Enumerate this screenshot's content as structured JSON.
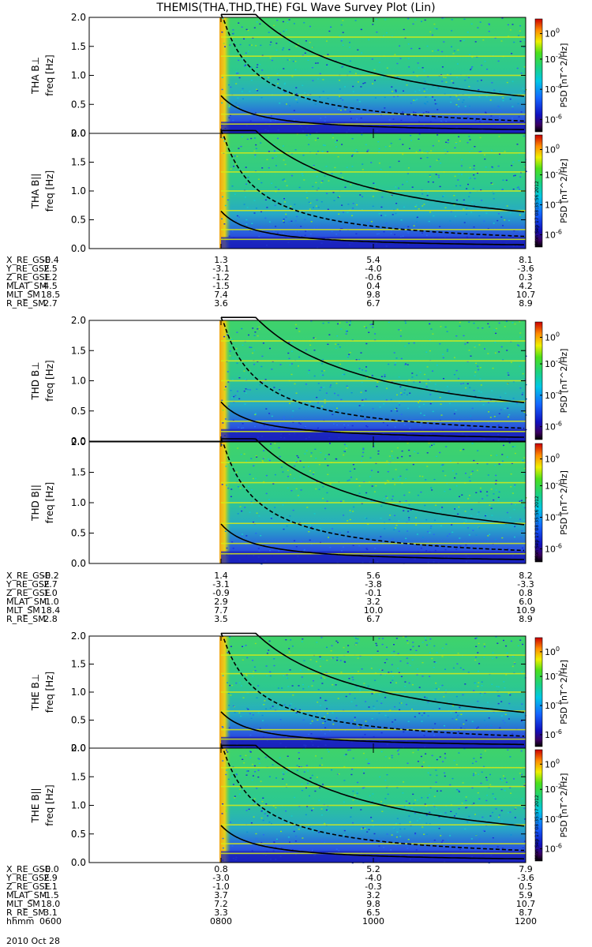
{
  "title": "THEMIS(THA,THD,THE) FGL Wave Survey Plot (Lin)",
  "colorbar": {
    "label": "PSD [nT^2/Hz]",
    "ticks": [
      "10^0",
      "10^-2",
      "10^-4",
      "10^-6"
    ]
  },
  "date_label": "2010 Oct 28",
  "chart_data": [
    {
      "type": "heatmap",
      "probe": "THA",
      "component": "B⊥",
      "ylabel": "THA B⊥  freq [Hz]",
      "yticks": [
        "0.0",
        "0.5",
        "1.0",
        "1.5",
        "2.0"
      ],
      "ylim": [
        0,
        2.0
      ],
      "xlim": [
        "0600",
        "1200"
      ],
      "data_start": "0800",
      "stamp": ""
    },
    {
      "type": "heatmap",
      "probe": "THA",
      "component": "B||",
      "ylabel": "THA B||  freq [Hz]",
      "yticks": [
        "0.0",
        "0.5",
        "1.0",
        "1.5",
        "2.0"
      ],
      "ylim": [
        0,
        2.0
      ],
      "xlim": [
        "0600",
        "1200"
      ],
      "data_start": "0800",
      "stamp": "Mon Sep 17 08:35:56 2012"
    },
    {
      "type": "heatmap",
      "probe": "THD",
      "component": "B⊥",
      "ylabel": "THD B⊥  freq [Hz]",
      "yticks": [
        "0.0",
        "0.5",
        "1.0",
        "1.5",
        "2.0"
      ],
      "ylim": [
        0,
        2.0
      ],
      "xlim": [
        "0600",
        "1200"
      ],
      "data_start": "0800",
      "stamp": ""
    },
    {
      "type": "heatmap",
      "probe": "THD",
      "component": "B||",
      "ylabel": "THD B||  freq [Hz]",
      "yticks": [
        "0.0",
        "0.5",
        "1.0",
        "1.5",
        "2.0"
      ],
      "ylim": [
        0,
        2.0
      ],
      "xlim": [
        "0600",
        "1200"
      ],
      "data_start": "0800",
      "stamp": "Mon Sep 17 08:35:56 2012"
    },
    {
      "type": "heatmap",
      "probe": "THE",
      "component": "B⊥",
      "ylabel": "THE B⊥  freq [Hz]",
      "yticks": [
        "0.0",
        "0.5",
        "1.0",
        "1.5",
        "2.0"
      ],
      "ylim": [
        0,
        2.0
      ],
      "xlim": [
        "0600",
        "1200"
      ],
      "data_start": "0800",
      "stamp": ""
    },
    {
      "type": "heatmap",
      "probe": "THE",
      "component": "B||",
      "ylabel": "THE B||  freq [Hz]",
      "yticks": [
        "0.0",
        "0.5",
        "1.0",
        "1.5",
        "2.0"
      ],
      "ylim": [
        0,
        2.0
      ],
      "xlim": [
        "0600",
        "1200"
      ],
      "data_start": "0800",
      "stamp": "Mon Sep 17 08:35:57 2012"
    }
  ],
  "ephemeris": [
    {
      "rows": [
        [
          "X_RE_GSE",
          "-0.4",
          "1.3",
          "5.4",
          "8.1"
        ],
        [
          "Y_RE_GSE",
          "2.5",
          "-3.1",
          "-4.0",
          "-3.6"
        ],
        [
          "Z_RE_GSE",
          "1.2",
          "-1.2",
          "-0.6",
          "0.3"
        ],
        [
          "MLAT_SM",
          "4.5",
          "-1.5",
          "0.4",
          "4.2"
        ],
        [
          "MLT_SM",
          "18.5",
          "7.4",
          "9.8",
          "10.7"
        ],
        [
          "R_RE_SM",
          "2.7",
          "3.6",
          "6.7",
          "8.9"
        ]
      ]
    },
    {
      "rows": [
        [
          "X_RE_GSE",
          "-0.2",
          "1.4",
          "5.6",
          "8.2"
        ],
        [
          "Y_RE_GSE",
          "2.7",
          "-3.1",
          "-3.8",
          "-3.3"
        ],
        [
          "Z_RE_GSE",
          "1.0",
          "-0.9",
          "-0.1",
          "0.8"
        ],
        [
          "MLAT_SM",
          "-1.0",
          "2.9",
          "3.2",
          "6.0"
        ],
        [
          "MLT_SM",
          "18.4",
          "7.7",
          "10.0",
          "10.9"
        ],
        [
          "R_RE_SM",
          "2.8",
          "3.5",
          "6.7",
          "8.9"
        ]
      ]
    },
    {
      "rows": [
        [
          "X_RE_GSE",
          "-0.0",
          "0.8",
          "5.2",
          "7.9"
        ],
        [
          "Y_RE_GSE",
          "2.9",
          "-3.0",
          "-4.0",
          "-3.6"
        ],
        [
          "Z_RE_GSE",
          "1.1",
          "-1.0",
          "-0.3",
          "0.5"
        ],
        [
          "MLAT_SM",
          "-1.5",
          "3.7",
          "3.2",
          "5.9"
        ],
        [
          "MLT_SM",
          "18.0",
          "7.2",
          "9.8",
          "10.7"
        ],
        [
          "R_RE_SM",
          "3.1",
          "3.3",
          "6.5",
          "8.7"
        ],
        [
          "hhmm",
          "0600",
          "0800",
          "1000",
          "1200"
        ]
      ]
    }
  ],
  "colors": {
    "background": "#ffffff",
    "spectrum_low": "#1b2fd8",
    "spectrum_mid": "#2ecf9c",
    "spectrum_high": "#8fe02a",
    "harmonic_line": "#d6ea16",
    "onset_band": "#f2a516"
  }
}
